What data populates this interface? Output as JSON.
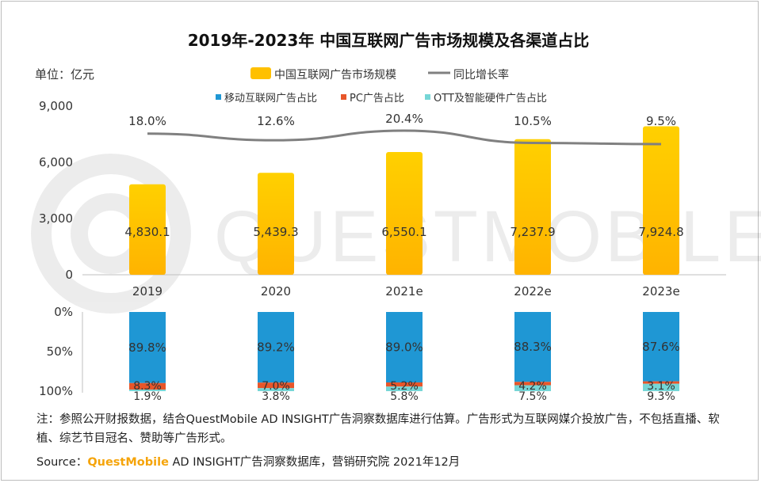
{
  "chart_data": [
    {
      "type": "bar",
      "title": "2019年-2023年 中国互联网广告市场规模及各渠道占比",
      "unit_label": "单位：亿元",
      "categories": [
        "2019",
        "2020",
        "2021e",
        "2022e",
        "2023e"
      ],
      "series": [
        {
          "name": "中国互联网广告市场规模",
          "type": "bar",
          "color": "#ffc000",
          "values": [
            4830.1,
            5439.3,
            6550.1,
            7237.9,
            7924.8
          ],
          "labels": [
            "4,830.1",
            "5,439.3",
            "6,550.1",
            "7,237.9",
            "7,924.8"
          ]
        },
        {
          "name": "同比增长率",
          "type": "line",
          "color": "#808080",
          "values": [
            18.0,
            12.6,
            20.4,
            10.5,
            9.5
          ],
          "labels": [
            "18.0%",
            "12.6%",
            "20.4%",
            "10.5%",
            "9.5%"
          ]
        }
      ],
      "yticks": [
        "9,000",
        "6,000",
        "3,000",
        "0"
      ],
      "ylim": [
        0,
        9000
      ],
      "legend_position": "top"
    },
    {
      "type": "bar",
      "stacked": true,
      "categories": [
        "2019",
        "2020",
        "2021e",
        "2022e",
        "2023e"
      ],
      "series": [
        {
          "name": "移动互联网广告占比",
          "color": "#1f97d4",
          "values": [
            89.8,
            89.2,
            89.0,
            88.3,
            87.6
          ],
          "labels": [
            "89.8%",
            "89.2%",
            "89.0%",
            "88.3%",
            "87.6%"
          ]
        },
        {
          "name": "PC广告占比",
          "color": "#e8562a",
          "values": [
            8.3,
            7.0,
            5.2,
            4.2,
            3.1
          ],
          "labels": [
            "8.3%",
            "7.0%",
            "5.2%",
            "4.2%",
            "3.1%"
          ]
        },
        {
          "name": "OTT及智能硬件广告占比",
          "color": "#76d6d6",
          "values": [
            1.9,
            3.8,
            5.8,
            7.5,
            9.3
          ],
          "labels": [
            "1.9%",
            "3.8%",
            "5.8%",
            "7.5%",
            "9.3%"
          ]
        }
      ],
      "yticks": [
        "0%",
        "50%",
        "100%"
      ],
      "ylim": [
        0,
        100
      ],
      "legend_position": "top"
    }
  ],
  "watermark": "QUESTMOBILE",
  "note": "注：参照公开财报数据，结合QuestMobile AD INSIGHT广告洞察数据库进行估算。广告形式为互联网媒介投放广告，不包括直播、软植、综艺节目冠名、赞助等广告形式。",
  "source": {
    "prefix": "Source：",
    "brand": "QuestMobile",
    "rest": " AD INSIGHT广告洞察数据库，营销研究院 2021年12月"
  }
}
